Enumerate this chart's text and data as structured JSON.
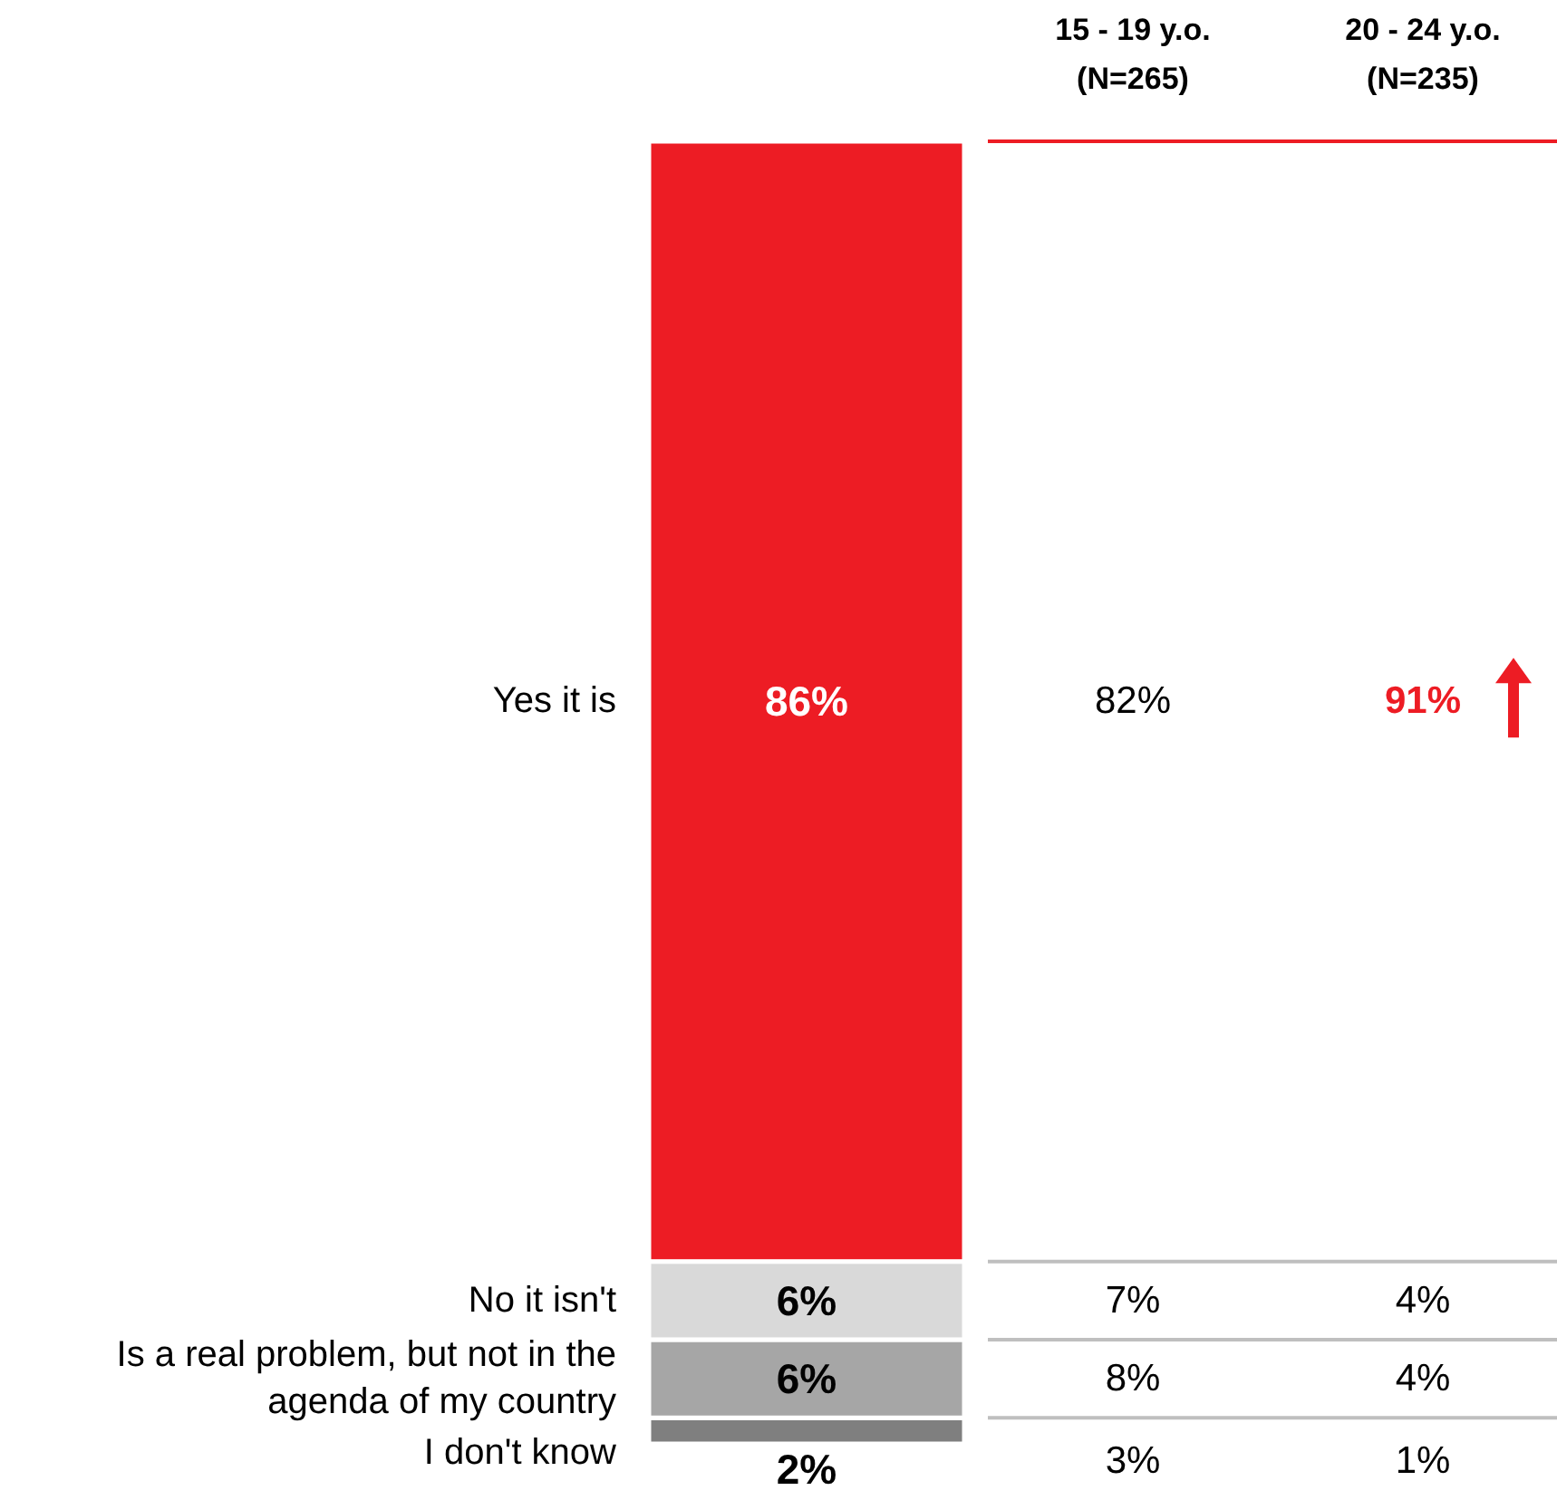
{
  "chart_data": [
    {
      "type": "bar",
      "stacked": true,
      "categories": [
        null
      ],
      "data_labels": true,
      "series": [
        {
          "name": "I don't know",
          "color": "#7f7f7f",
          "values": [
            2
          ],
          "value_labels": [
            "2%"
          ]
        },
        {
          "name": "Is a real problem, but not in the agenda of my country",
          "color": "#a6a6a6",
          "values": [
            6
          ],
          "value_labels": [
            "6%"
          ]
        },
        {
          "name": "No it isn't",
          "color": "#d9d9d9",
          "values": [
            6
          ],
          "value_labels": [
            "6%"
          ]
        },
        {
          "name": "Yes it is",
          "color": "#ed1c24",
          "values": [
            86
          ],
          "value_labels": [
            "86%"
          ]
        }
      ]
    },
    {
      "type": "other",
      "categories": [
        "15 - 19 y.o. (N=265)",
        "20 - 24 y.o. (N=235)"
      ],
      "series": [
        {
          "values": [
            3,
            1
          ],
          "value_labels": [
            "3%",
            "1%"
          ],
          "colors": [
            "#000000",
            "#000000"
          ]
        },
        {
          "values": [
            8,
            4
          ],
          "value_labels": [
            "8%",
            "4%"
          ],
          "colors": [
            "#000000",
            "#000000"
          ]
        },
        {
          "values": [
            7,
            4
          ],
          "value_labels": [
            "7%",
            "4%"
          ],
          "colors": [
            "#000000",
            "#000000"
          ]
        },
        {
          "values": [
            82,
            91
          ],
          "value_labels": [
            "82%",
            "91%"
          ],
          "colors": [
            "#000000",
            "#ed1c24"
          ]
        }
      ]
    }
  ]
}
